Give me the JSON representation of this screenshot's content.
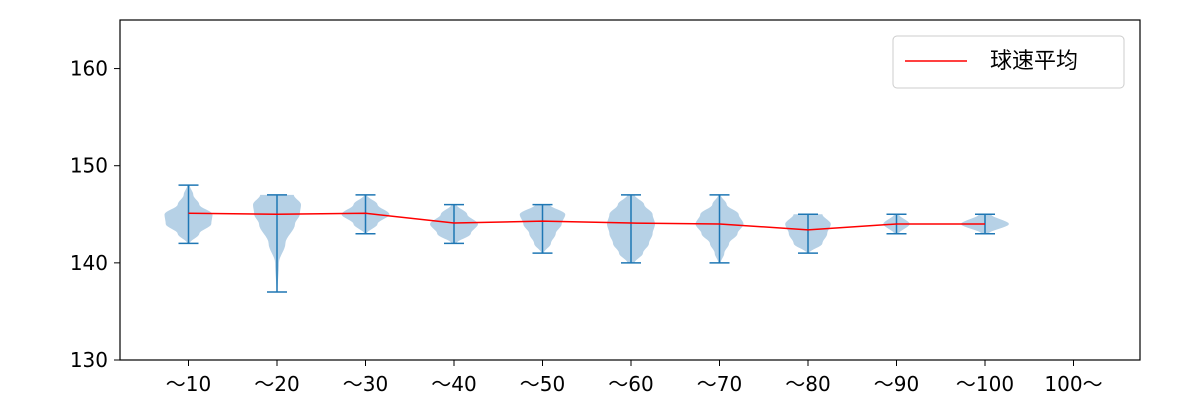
{
  "chart_data": {
    "type": "violin",
    "categories": [
      "～10",
      "～20",
      "～30",
      "～40",
      "～50",
      "～60",
      "～70",
      "～80",
      "～90",
      "～100",
      "100～"
    ],
    "ylim": [
      130,
      165
    ],
    "yticks": [
      "130",
      "140",
      "150",
      "160"
    ],
    "grid": false,
    "legend": {
      "placement": "top-right",
      "entries": [
        "球速平均"
      ]
    },
    "series": [
      {
        "name": "球速平均",
        "kind": "line",
        "color": "#ff0000",
        "values": [
          145.1,
          145.0,
          145.1,
          144.1,
          144.3,
          144.1,
          144.0,
          143.4,
          144.0,
          144.0,
          null
        ]
      }
    ],
    "distributions": [
      {
        "category": "～10",
        "min": 142,
        "max": 148,
        "density": [
          [
            142,
            0.05
          ],
          [
            143,
            0.45
          ],
          [
            144,
            0.95
          ],
          [
            145,
            1.0
          ],
          [
            146,
            0.45
          ],
          [
            147,
            0.2
          ],
          [
            148,
            0.05
          ]
        ]
      },
      {
        "category": "～20",
        "min": 137,
        "max": 147,
        "density": [
          [
            137,
            0.02
          ],
          [
            140,
            0.08
          ],
          [
            142,
            0.35
          ],
          [
            144,
            0.75
          ],
          [
            145,
            0.95
          ],
          [
            146,
            1.0
          ],
          [
            147,
            0.7
          ]
        ]
      },
      {
        "category": "～30",
        "min": 143,
        "max": 147,
        "density": [
          [
            143,
            0.05
          ],
          [
            144,
            0.5
          ],
          [
            145,
            1.0
          ],
          [
            146,
            0.5
          ],
          [
            147,
            0.05
          ]
        ]
      },
      {
        "category": "～40",
        "min": 142,
        "max": 146,
        "density": [
          [
            142,
            0.1
          ],
          [
            143,
            0.7
          ],
          [
            144,
            1.0
          ],
          [
            145,
            0.55
          ],
          [
            146,
            0.1
          ]
        ]
      },
      {
        "category": "～50",
        "min": 141,
        "max": 146,
        "density": [
          [
            141,
            0.05
          ],
          [
            142,
            0.35
          ],
          [
            143,
            0.55
          ],
          [
            144,
            0.8
          ],
          [
            145,
            0.95
          ],
          [
            146,
            0.3
          ]
        ]
      },
      {
        "category": "～60",
        "min": 140,
        "max": 147,
        "density": [
          [
            140,
            0.15
          ],
          [
            141,
            0.5
          ],
          [
            142,
            0.75
          ],
          [
            143,
            0.9
          ],
          [
            144,
            1.0
          ],
          [
            145,
            0.9
          ],
          [
            146,
            0.55
          ],
          [
            147,
            0.15
          ]
        ]
      },
      {
        "category": "～70",
        "min": 140,
        "max": 147,
        "density": [
          [
            140,
            0.05
          ],
          [
            141,
            0.2
          ],
          [
            142,
            0.4
          ],
          [
            143,
            0.75
          ],
          [
            144,
            1.0
          ],
          [
            145,
            0.8
          ],
          [
            146,
            0.3
          ],
          [
            147,
            0.05
          ]
        ]
      },
      {
        "category": "～80",
        "min": 141,
        "max": 145,
        "density": [
          [
            141,
            0.05
          ],
          [
            142,
            0.6
          ],
          [
            143,
            0.8
          ],
          [
            144,
            0.95
          ],
          [
            145,
            0.6
          ]
        ]
      },
      {
        "category": "～90",
        "min": 143,
        "max": 145,
        "density": [
          [
            143,
            0.1
          ],
          [
            144,
            0.55
          ],
          [
            145,
            0.1
          ]
        ]
      },
      {
        "category": "～100",
        "min": 143,
        "max": 145,
        "density": [
          [
            143,
            0.15
          ],
          [
            144,
            1.0
          ],
          [
            145,
            0.25
          ]
        ]
      }
    ],
    "colors": {
      "violin_fill": "#a9c9e2",
      "violin_line": "#1f77b4",
      "mean_line": "#ff0000"
    }
  }
}
